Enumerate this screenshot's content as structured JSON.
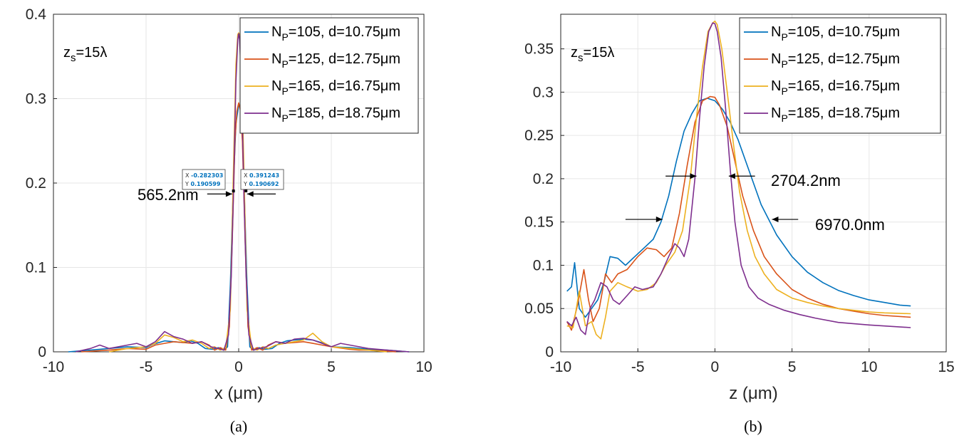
{
  "chart_data": [
    {
      "type": "line",
      "panel_label": "(a)",
      "xlabel": "x (μm)",
      "ylabel": "",
      "xlim": [
        -10,
        10
      ],
      "ylim": [
        0,
        0.4
      ],
      "xticks": [
        "-10",
        "-5",
        "0",
        "5",
        "10"
      ],
      "yticks": [
        "0",
        "0.1",
        "0.2",
        "0.3",
        "0.4"
      ],
      "grid": true,
      "legend_position": "top-right",
      "annotation_zs": "z_s=15λ",
      "annotations": [
        {
          "text": "565.2nm",
          "x": -1.7,
          "y": 0.185
        }
      ],
      "datatips": [
        {
          "x_label": "X",
          "x_value": "-0.282303",
          "y_label": "Y",
          "y_value": "0.190599",
          "x": -0.282303,
          "y": 0.190599
        },
        {
          "x_label": "X",
          "x_value": "0.391243",
          "y_label": "Y",
          "y_value": "0.190692",
          "x": 0.391243,
          "y": 0.190692
        }
      ],
      "series": [
        {
          "name": "N_P=105, d=10.75μm",
          "color": "#0072BD",
          "x": [
            -9.2,
            -8,
            -7,
            -6,
            -5,
            -4.6,
            -4,
            -3.5,
            -3,
            -2.6,
            -2.2,
            -1.8,
            -1.4,
            -1.1,
            -0.8,
            -0.6,
            -0.45,
            -0.3,
            -0.15,
            0,
            0.15,
            0.3,
            0.45,
            0.6,
            0.8,
            1.1,
            1.4,
            1.8,
            2.2,
            2.6,
            3,
            3.5,
            4,
            4.6,
            5,
            6,
            7,
            8,
            9.2
          ],
          "y": [
            0,
            0.002,
            0.004,
            0.006,
            0.005,
            0.009,
            0.013,
            0.012,
            0.011,
            0.013,
            0.01,
            0.004,
            0.003,
            0.005,
            0.002,
            0.006,
            0.08,
            0.19,
            0.27,
            0.293,
            0.285,
            0.19,
            0.08,
            0.006,
            0.002,
            0.005,
            0.003,
            0.004,
            0.01,
            0.013,
            0.014,
            0.015,
            0.014,
            0.01,
            0.006,
            0.005,
            0.003,
            0.002,
            0
          ]
        },
        {
          "name": "N_P=125, d=12.75μm",
          "color": "#D95319",
          "x": [
            -8.5,
            -7,
            -6,
            -5,
            -4.5,
            -4,
            -3.5,
            -3,
            -2.5,
            -2,
            -1.6,
            -1.3,
            -1,
            -0.7,
            -0.5,
            -0.35,
            -0.2,
            -0.1,
            0,
            0.1,
            0.2,
            0.35,
            0.5,
            0.7,
            1,
            1.3,
            1.6,
            2,
            2.5,
            3,
            3.5,
            4,
            4.5,
            5,
            6,
            6.5,
            7,
            8.5
          ],
          "y": [
            0,
            0.002,
            0.004,
            0.003,
            0.008,
            0.01,
            0.012,
            0.011,
            0.01,
            0.012,
            0.008,
            0.002,
            0.005,
            0.002,
            0.03,
            0.13,
            0.25,
            0.285,
            0.295,
            0.285,
            0.25,
            0.13,
            0.03,
            0.002,
            0.005,
            0.002,
            0.008,
            0.012,
            0.01,
            0.011,
            0.012,
            0.01,
            0.008,
            0.006,
            0.003,
            0.002,
            0.002,
            0
          ]
        },
        {
          "name": "N_P=165, d=16.75μm",
          "color": "#EDB120",
          "x": [
            -7,
            -6,
            -5,
            -4.5,
            -4,
            -3.5,
            -3,
            -2.5,
            -2,
            -1.6,
            -1.3,
            -1,
            -0.7,
            -0.45,
            -0.3,
            -0.15,
            -0.05,
            0,
            0.05,
            0.15,
            0.3,
            0.45,
            0.7,
            1,
            1.3,
            1.6,
            2,
            2.5,
            3,
            3.5,
            4,
            4.5,
            5,
            6,
            7,
            8
          ],
          "y": [
            0,
            0.004,
            0.006,
            0.01,
            0.02,
            0.017,
            0.012,
            0.014,
            0.01,
            0.004,
            0.006,
            0.002,
            0.005,
            0.05,
            0.2,
            0.34,
            0.376,
            0.378,
            0.376,
            0.34,
            0.2,
            0.05,
            0.005,
            0.002,
            0.006,
            0.004,
            0.008,
            0.01,
            0.012,
            0.014,
            0.022,
            0.012,
            0.006,
            0.004,
            0.002,
            0
          ]
        },
        {
          "name": "N_P=185, d=18.75μm",
          "color": "#7E2F8E",
          "x": [
            -8.8,
            -8,
            -7.5,
            -7,
            -6,
            -5.5,
            -5,
            -4.5,
            -4,
            -3.5,
            -3,
            -2.5,
            -2,
            -1.5,
            -1.1,
            -0.8,
            -0.55,
            -0.4,
            -0.28,
            -0.15,
            -0.05,
            0,
            0.05,
            0.15,
            0.28,
            0.4,
            0.55,
            0.8,
            1.1,
            1.5,
            2,
            2.5,
            3,
            3.5,
            4,
            4.5,
            5,
            5.5,
            6,
            7,
            8,
            9.2
          ],
          "y": [
            0,
            0.004,
            0.008,
            0.004,
            0.008,
            0.01,
            0.006,
            0.012,
            0.024,
            0.018,
            0.015,
            0.01,
            0.012,
            0.006,
            0.004,
            0.002,
            0.02,
            0.09,
            0.19,
            0.32,
            0.37,
            0.377,
            0.37,
            0.32,
            0.19,
            0.09,
            0.02,
            0.002,
            0.004,
            0.006,
            0.012,
            0.01,
            0.015,
            0.016,
            0.014,
            0.01,
            0.006,
            0.01,
            0.008,
            0.004,
            0.002,
            0
          ]
        }
      ]
    },
    {
      "type": "line",
      "panel_label": "(b)",
      "xlabel": "z (μm)",
      "ylabel": "",
      "xlim": [
        -10,
        15
      ],
      "ylim": [
        0,
        0.39
      ],
      "xticks": [
        "-10",
        "-5",
        "0",
        "5",
        "10",
        "15"
      ],
      "yticks": [
        "0",
        "0.05",
        "0.1",
        "0.15",
        "0.2",
        "0.25",
        "0.3",
        "0.35"
      ],
      "grid": true,
      "legend_position": "top-right",
      "annotation_zs": "z_s=15λ",
      "annotations": [
        {
          "text": "2704.2nm",
          "x": 2.5,
          "y": 0.205
        },
        {
          "text": "6970.0nm",
          "x": 6.2,
          "y": 0.154
        }
      ],
      "series": [
        {
          "name": "N_P=105, d=10.75μm",
          "color": "#0072BD",
          "x": [
            -9.6,
            -9.3,
            -9.1,
            -8.8,
            -8.4,
            -8,
            -7.6,
            -7.2,
            -6.8,
            -6.3,
            -5.8,
            -5.2,
            -4.6,
            -4,
            -3.5,
            -3,
            -2.5,
            -2,
            -1.5,
            -1,
            -0.5,
            0,
            0.5,
            1,
            1.5,
            2,
            2.5,
            3,
            4,
            5,
            6,
            7,
            8,
            9,
            10,
            11,
            12,
            12.7
          ],
          "y": [
            0.07,
            0.075,
            0.103,
            0.05,
            0.04,
            0.05,
            0.06,
            0.08,
            0.11,
            0.108,
            0.1,
            0.11,
            0.12,
            0.13,
            0.15,
            0.18,
            0.22,
            0.255,
            0.275,
            0.29,
            0.293,
            0.29,
            0.28,
            0.265,
            0.245,
            0.22,
            0.195,
            0.17,
            0.135,
            0.11,
            0.092,
            0.08,
            0.071,
            0.065,
            0.06,
            0.057,
            0.054,
            0.053
          ]
        },
        {
          "name": "N_P=125, d=12.75μm",
          "color": "#D95319",
          "x": [
            -9.6,
            -9.3,
            -8.9,
            -8.5,
            -8.2,
            -7.9,
            -7.5,
            -7.1,
            -6.7,
            -6.3,
            -5.7,
            -5,
            -4.4,
            -3.8,
            -3.3,
            -2.8,
            -2.3,
            -1.8,
            -1.3,
            -0.8,
            -0.3,
            0,
            0.3,
            0.8,
            1.3,
            1.8,
            2.5,
            3.2,
            4,
            5,
            6,
            7,
            8,
            9,
            10,
            11,
            12.7
          ],
          "y": [
            0.035,
            0.025,
            0.055,
            0.095,
            0.06,
            0.035,
            0.05,
            0.09,
            0.08,
            0.09,
            0.095,
            0.11,
            0.12,
            0.118,
            0.11,
            0.12,
            0.16,
            0.215,
            0.265,
            0.29,
            0.295,
            0.294,
            0.285,
            0.26,
            0.22,
            0.18,
            0.14,
            0.11,
            0.09,
            0.072,
            0.062,
            0.055,
            0.05,
            0.047,
            0.044,
            0.042,
            0.04
          ]
        },
        {
          "name": "N_P=165, d=16.75μm",
          "color": "#EDB120",
          "x": [
            -9.6,
            -9.2,
            -8.8,
            -8.4,
            -8,
            -7.7,
            -7.4,
            -7.1,
            -6.8,
            -6.3,
            -5.7,
            -5,
            -4.4,
            -3.8,
            -3.2,
            -2.6,
            -2.1,
            -1.6,
            -1.2,
            -0.8,
            -0.45,
            -0.15,
            0,
            0.15,
            0.45,
            0.8,
            1.2,
            1.6,
            2.1,
            2.6,
            3.2,
            4,
            5,
            6,
            7,
            8,
            9,
            10,
            11,
            12.7
          ],
          "y": [
            0.03,
            0.028,
            0.07,
            0.03,
            0.035,
            0.02,
            0.015,
            0.04,
            0.07,
            0.08,
            0.075,
            0.07,
            0.072,
            0.08,
            0.1,
            0.115,
            0.14,
            0.2,
            0.27,
            0.33,
            0.37,
            0.38,
            0.382,
            0.378,
            0.35,
            0.3,
            0.24,
            0.185,
            0.14,
            0.11,
            0.09,
            0.072,
            0.062,
            0.057,
            0.053,
            0.05,
            0.048,
            0.046,
            0.045,
            0.044
          ]
        },
        {
          "name": "N_P=185, d=18.75μm",
          "color": "#7E2F8E",
          "x": [
            -9.6,
            -9.3,
            -9,
            -8.7,
            -8.4,
            -8.1,
            -7.8,
            -7.4,
            -7,
            -6.6,
            -6.2,
            -5.7,
            -5.2,
            -4.7,
            -4,
            -3.5,
            -3,
            -2.6,
            -2.3,
            -2,
            -1.7,
            -1.3,
            -1,
            -0.7,
            -0.4,
            -0.15,
            0,
            0.15,
            0.4,
            0.7,
            1,
            1.3,
            1.7,
            2.2,
            2.8,
            3.5,
            4.5,
            5.5,
            6.5,
            8,
            10,
            12.7
          ],
          "y": [
            0.035,
            0.03,
            0.04,
            0.025,
            0.02,
            0.05,
            0.06,
            0.08,
            0.075,
            0.06,
            0.055,
            0.065,
            0.075,
            0.072,
            0.075,
            0.09,
            0.11,
            0.125,
            0.12,
            0.11,
            0.13,
            0.2,
            0.27,
            0.33,
            0.37,
            0.38,
            0.379,
            0.37,
            0.34,
            0.28,
            0.21,
            0.15,
            0.1,
            0.075,
            0.062,
            0.055,
            0.048,
            0.043,
            0.039,
            0.034,
            0.031,
            0.028
          ]
        }
      ]
    }
  ]
}
